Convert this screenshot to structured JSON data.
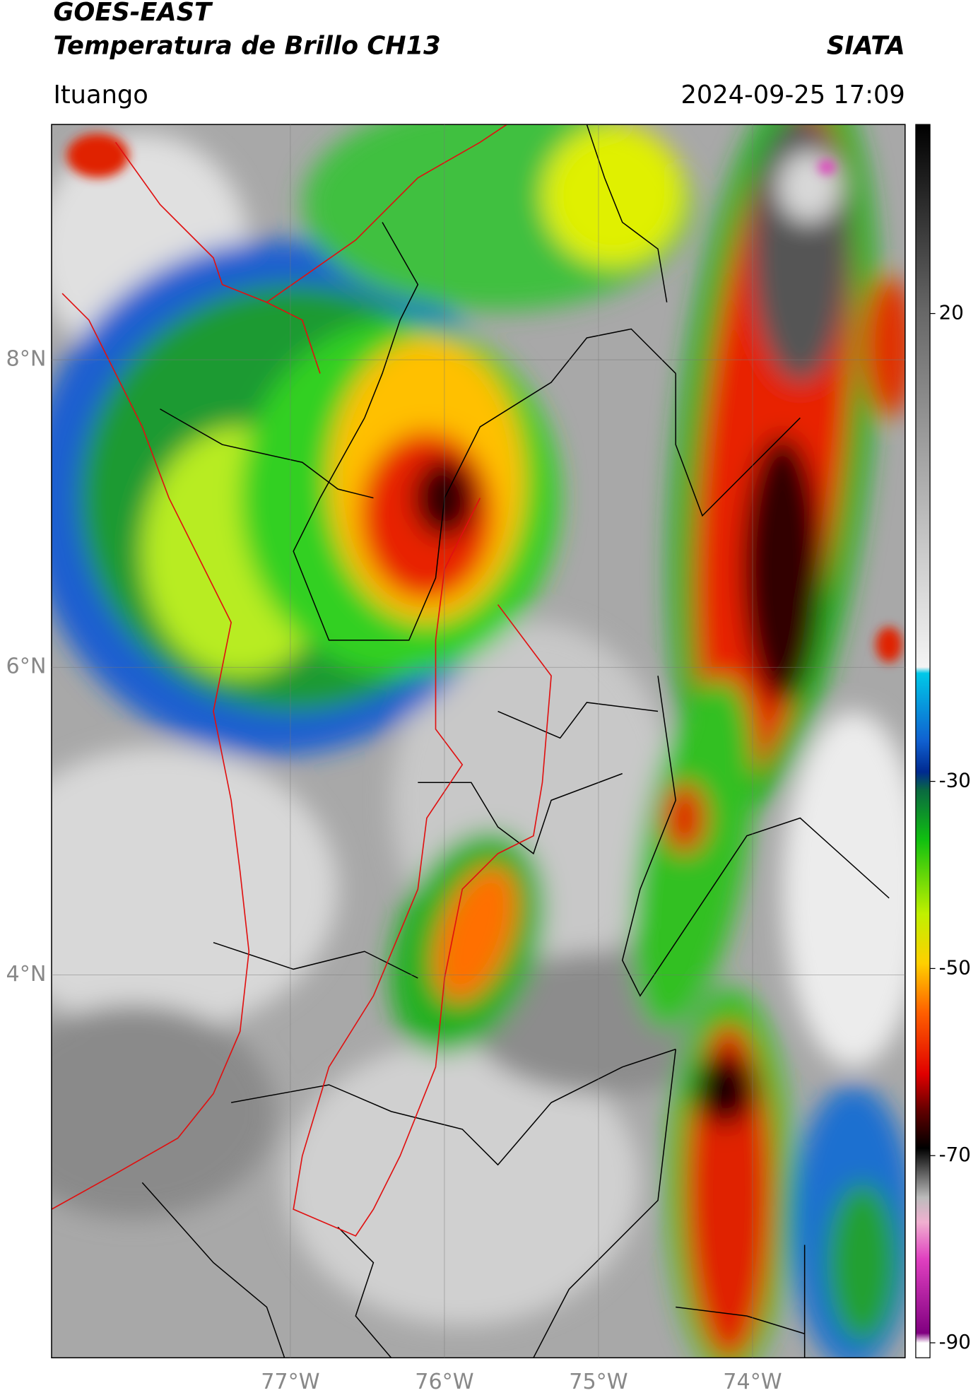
{
  "header": {
    "title": "GOES-EAST",
    "subtitle": "Temperatura de Brillo CH13",
    "source": "SIATA",
    "location": "Ituango",
    "datetime": "2024-09-25 17:09"
  },
  "map": {
    "xlim": [
      -78.55,
      -73.01
    ],
    "ylim": [
      1.51,
      9.53
    ],
    "xticks": [
      {
        "value": -77,
        "label": "77°W"
      },
      {
        "value": -76,
        "label": "76°W"
      },
      {
        "value": -75,
        "label": "75°W"
      },
      {
        "value": -74,
        "label": "74°W"
      }
    ],
    "yticks": [
      {
        "value": 4,
        "label": "4°N"
      },
      {
        "value": 6,
        "label": "6°N"
      },
      {
        "value": 8,
        "label": "8°N"
      }
    ]
  },
  "colorbar": {
    "lim": [
      -91.6,
      40.2
    ],
    "ticks": [
      -90,
      -70,
      -50,
      -30,
      20
    ]
  }
}
